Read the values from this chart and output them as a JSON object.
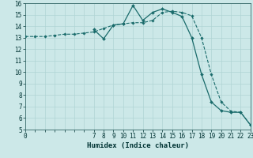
{
  "title": "",
  "xlabel": "Humidex (Indice chaleur)",
  "bg_color": "#cce8e8",
  "grid_color": "#b0d4d4",
  "line_color": "#1a6b6b",
  "xlim": [
    0,
    23
  ],
  "ylim": [
    5,
    16
  ],
  "yticks": [
    5,
    6,
    7,
    8,
    9,
    10,
    11,
    12,
    13,
    14,
    15,
    16
  ],
  "xticks_labeled": [
    0,
    7,
    8,
    9,
    10,
    11,
    12,
    13,
    14,
    15,
    16,
    17,
    18,
    19,
    20,
    21,
    22,
    23
  ],
  "line1_x": [
    0,
    1,
    2,
    3,
    4,
    5,
    6,
    7,
    8,
    9,
    10,
    11,
    12,
    13,
    14,
    15,
    16,
    17,
    18,
    19,
    20,
    21,
    22,
    23
  ],
  "line1_y": [
    13.1,
    13.1,
    13.1,
    13.2,
    13.3,
    13.3,
    13.4,
    13.5,
    13.8,
    14.1,
    14.2,
    14.3,
    14.3,
    14.5,
    15.2,
    15.3,
    15.2,
    14.9,
    13.0,
    9.8,
    7.4,
    6.6,
    6.5,
    5.4
  ],
  "line2_x": [
    7,
    8,
    9,
    10,
    11,
    12,
    13,
    14,
    15,
    16,
    17,
    18,
    19,
    20,
    21,
    22,
    23
  ],
  "line2_y": [
    13.7,
    12.9,
    14.1,
    14.2,
    15.8,
    14.5,
    15.2,
    15.5,
    15.2,
    14.85,
    13.0,
    9.8,
    7.4,
    6.65,
    6.5,
    6.5,
    5.4
  ]
}
